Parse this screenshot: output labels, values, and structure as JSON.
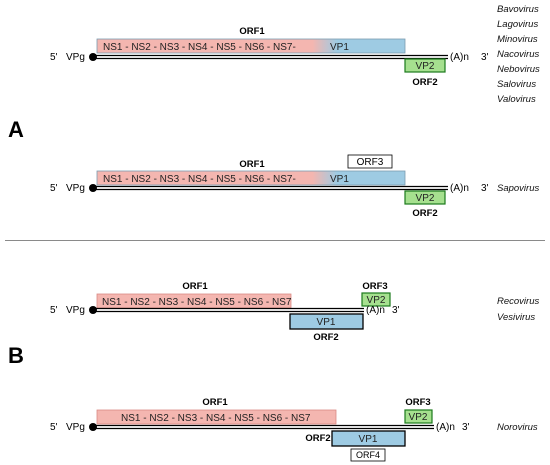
{
  "common": {
    "five_prime": "5'",
    "vpg": "VPg",
    "polya": "(A)n",
    "three_prime": "3'"
  },
  "panels": {
    "a": "A",
    "b": "B"
  },
  "rows": [
    {
      "orf1": "ORF1",
      "ns": "NS1 - NS2 - NS3 - NS4 - NS5 - NS6 - NS7-",
      "vp1": "VP1",
      "vp2": "VP2",
      "orf2": "ORF2",
      "genera": [
        "Bavovirus",
        "Lagovirus",
        "Minovirus",
        "Nacovirus",
        "Nebovirus",
        "Salovirus",
        "Valovirus"
      ]
    },
    {
      "orf1": "ORF1",
      "orf3": "ORF3",
      "ns": "NS1 - NS2 - NS3 - NS4 - NS5 - NS6 - NS7-",
      "vp1": "VP1",
      "vp2": "VP2",
      "orf2": "ORF2",
      "genera": [
        "Sapovirus"
      ]
    },
    {
      "orf1": "ORF1",
      "orf3": "ORF3",
      "ns": "NS1 - NS2 - NS3 - NS4 - NS5 - NS6 - NS7",
      "vp2": "VP2",
      "vp1": "VP1",
      "orf2": "ORF2",
      "genera": [
        "Recovirus",
        "Vesivirus"
      ]
    },
    {
      "orf1": "ORF1",
      "orf3": "ORF3",
      "ns": "NS1 - NS2 - NS3 - NS4 - NS5 - NS6 - NS7",
      "vp2": "VP2",
      "orf2": "ORF2",
      "vp1": "VP1",
      "orf4": "ORF4",
      "genera": [
        "Norovirus"
      ]
    }
  ],
  "colors": {
    "ns_fill": "#f4b6b0",
    "ns_stroke": "#d98a84",
    "vp1_fill": "#9ecbe3",
    "vp2_fill": "#a6e08f",
    "vp2_stroke": "#1c7a1c"
  }
}
